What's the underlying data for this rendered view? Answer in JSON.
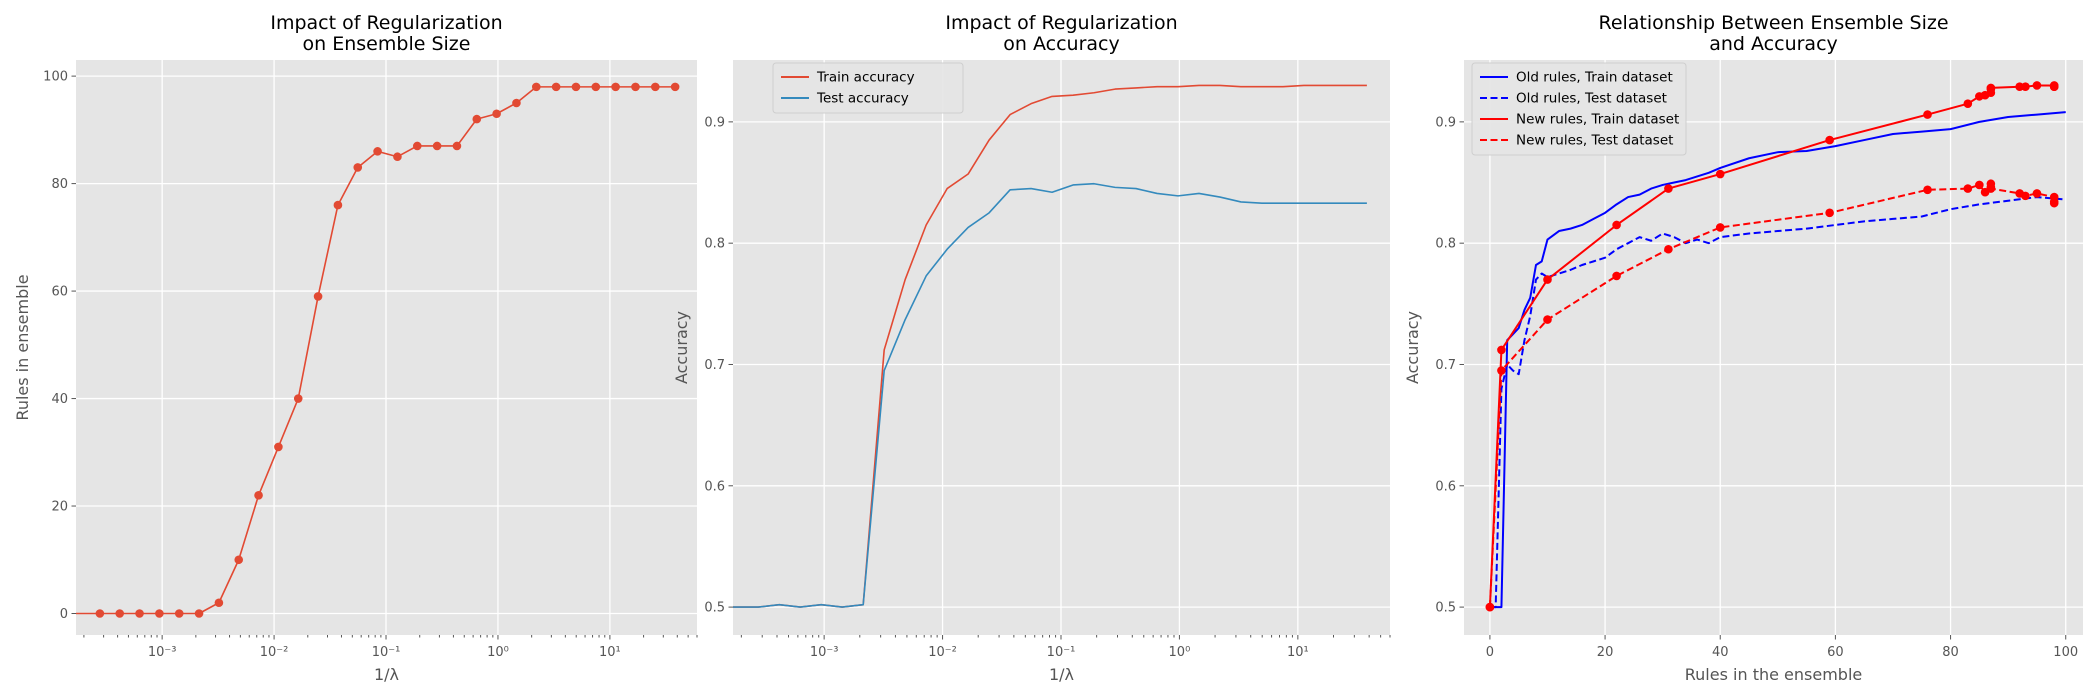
{
  "chart_data": [
    {
      "type": "line",
      "title": "Impact of Regularization\non Ensemble Size",
      "xlabel": "1/λ",
      "ylabel": "Rules in ensemble",
      "xscale": "log",
      "xlim": [
        0.00017,
        60
      ],
      "ylim": [
        -4,
        103
      ],
      "xticks": [
        0.001,
        0.01,
        0.1,
        1,
        10
      ],
      "xtick_labels": [
        "10⁻³",
        "10⁻²",
        "10⁻¹",
        "10⁰",
        "10¹"
      ],
      "yticks": [
        0,
        20,
        40,
        60,
        80,
        100
      ],
      "ytick_labels": [
        "0",
        "20",
        "40",
        "60",
        "80",
        "100"
      ],
      "grid": true,
      "series": [
        {
          "color": "#e24a33",
          "marker": "o",
          "x": [
            0.0001,
            0.0002778,
            0.0004178,
            0.0006283,
            0.0009449,
            0.001421,
            0.002137,
            0.003214,
            0.004833,
            0.007269,
            0.01093,
            0.01644,
            0.02472,
            0.03718,
            0.05591,
            0.08408,
            0.1265,
            0.1902,
            0.286,
            0.4301,
            0.6469,
            0.9728,
            1.463,
            2.2,
            3.309,
            4.976,
            7.484,
            11.25,
            16.93,
            25.45,
            38.28
          ],
          "values": [
            0,
            0,
            0,
            0,
            0,
            0,
            0,
            2,
            10,
            22,
            31,
            40,
            59,
            76,
            83,
            86,
            85,
            87,
            87,
            87,
            92,
            93,
            95,
            98,
            98,
            98,
            98,
            98,
            98,
            98,
            98
          ]
        }
      ]
    },
    {
      "type": "line",
      "title": "Impact of Regularization\non Accuracy",
      "xlabel": "1/λ",
      "ylabel": "Accuracy",
      "xscale": "log",
      "xlim": [
        0.00017,
        60
      ],
      "ylim": [
        0.477,
        0.951
      ],
      "xticks": [
        0.001,
        0.01,
        0.1,
        1,
        10
      ],
      "xtick_labels": [
        "10⁻³",
        "10⁻²",
        "10⁻¹",
        "10⁰",
        "10¹"
      ],
      "yticks": [
        0.5,
        0.6,
        0.7,
        0.8,
        0.9
      ],
      "ytick_labels": [
        "0.5",
        "0.6",
        "0.7",
        "0.8",
        "0.9"
      ],
      "grid": true,
      "legend": "top-left",
      "x": [
        0.0001,
        0.0002778,
        0.0004178,
        0.0006283,
        0.0009449,
        0.001421,
        0.002137,
        0.003214,
        0.004833,
        0.007269,
        0.01093,
        0.01644,
        0.02472,
        0.03718,
        0.05591,
        0.08408,
        0.1265,
        0.1902,
        0.286,
        0.4301,
        0.6469,
        0.9728,
        1.463,
        2.2,
        3.309,
        4.976,
        7.484,
        11.25,
        16.93,
        25.45,
        38.28
      ],
      "series": [
        {
          "name": "Train accuracy",
          "color": "#e24a33",
          "values": [
            0.5,
            0.5,
            0.502,
            0.5,
            0.502,
            0.5,
            0.502,
            0.712,
            0.77,
            0.815,
            0.845,
            0.857,
            0.885,
            0.906,
            0.915,
            0.921,
            0.922,
            0.924,
            0.927,
            0.928,
            0.929,
            0.929,
            0.93,
            0.93,
            0.929,
            0.929,
            0.929,
            0.93,
            0.93,
            0.93,
            0.93
          ]
        },
        {
          "name": "Test accuracy",
          "color": "#348abd",
          "values": [
            0.5,
            0.5,
            0.502,
            0.5,
            0.502,
            0.5,
            0.502,
            0.695,
            0.737,
            0.773,
            0.795,
            0.813,
            0.825,
            0.844,
            0.845,
            0.842,
            0.848,
            0.849,
            0.846,
            0.845,
            0.841,
            0.839,
            0.841,
            0.838,
            0.834,
            0.833,
            0.833,
            0.833,
            0.833,
            0.833,
            0.833
          ]
        }
      ]
    },
    {
      "type": "line",
      "title": "Relationship Between Ensemble Size\nand Accuracy",
      "xlabel": "Rules in the ensemble",
      "ylabel": "Accuracy",
      "xlim": [
        -4.5,
        103
      ],
      "ylim": [
        0.477,
        0.951
      ],
      "xticks": [
        0,
        20,
        40,
        60,
        80,
        100
      ],
      "xtick_labels": [
        "0",
        "20",
        "40",
        "60",
        "80",
        "100"
      ],
      "yticks": [
        0.5,
        0.6,
        0.7,
        0.8,
        0.9
      ],
      "ytick_labels": [
        "0.5",
        "0.6",
        "0.7",
        "0.8",
        "0.9"
      ],
      "grid": true,
      "legend": "top-left",
      "series": [
        {
          "name": "Old rules, Train dataset",
          "color": "#0000ff",
          "dash": "solid",
          "x": [
            0,
            1,
            2,
            3,
            4,
            5,
            6,
            7,
            8,
            9,
            10,
            12,
            14,
            16,
            18,
            20,
            22,
            24,
            26,
            28,
            30,
            32,
            34,
            36,
            38,
            40,
            45,
            50,
            55,
            60,
            65,
            70,
            75,
            80,
            85,
            90,
            95,
            100
          ],
          "values": [
            0.5,
            0.5,
            0.5,
            0.72,
            0.725,
            0.73,
            0.745,
            0.755,
            0.782,
            0.785,
            0.803,
            0.81,
            0.812,
            0.815,
            0.82,
            0.825,
            0.832,
            0.838,
            0.84,
            0.845,
            0.848,
            0.85,
            0.852,
            0.855,
            0.858,
            0.862,
            0.87,
            0.875,
            0.876,
            0.88,
            0.885,
            0.89,
            0.892,
            0.894,
            0.9,
            0.904,
            0.906,
            0.908
          ]
        },
        {
          "name": "Old rules, Test dataset",
          "color": "#0000ff",
          "dash": "dashed",
          "x": [
            0,
            1,
            2,
            3,
            4,
            5,
            6,
            7,
            8,
            9,
            10,
            12,
            14,
            16,
            18,
            20,
            22,
            24,
            26,
            28,
            30,
            32,
            34,
            36,
            38,
            40,
            45,
            50,
            55,
            60,
            65,
            70,
            75,
            80,
            85,
            90,
            95,
            100
          ],
          "values": [
            0.5,
            0.5,
            0.68,
            0.7,
            0.695,
            0.692,
            0.72,
            0.74,
            0.77,
            0.775,
            0.772,
            0.775,
            0.778,
            0.782,
            0.785,
            0.788,
            0.795,
            0.8,
            0.805,
            0.802,
            0.808,
            0.805,
            0.8,
            0.803,
            0.8,
            0.805,
            0.808,
            0.81,
            0.812,
            0.815,
            0.818,
            0.82,
            0.822,
            0.828,
            0.832,
            0.835,
            0.838,
            0.836
          ]
        },
        {
          "name": "New rules, Train dataset",
          "color": "#ff0000",
          "dash": "solid",
          "marker": "o",
          "x": [
            0,
            2,
            10,
            22,
            31,
            40,
            59,
            76,
            83,
            85,
            86,
            87,
            87,
            87,
            92,
            93,
            95,
            98,
            98,
            98
          ],
          "values": [
            0.5,
            0.712,
            0.77,
            0.815,
            0.845,
            0.857,
            0.885,
            0.906,
            0.915,
            0.921,
            0.922,
            0.924,
            0.927,
            0.928,
            0.929,
            0.929,
            0.93,
            0.93,
            0.929,
            0.929
          ]
        },
        {
          "name": "New rules, Test dataset",
          "color": "#ff0000",
          "dash": "dashed",
          "marker": "o",
          "x": [
            0,
            2,
            10,
            22,
            31,
            40,
            59,
            76,
            83,
            85,
            86,
            87,
            87,
            87,
            92,
            93,
            95,
            98,
            98,
            98
          ],
          "values": [
            0.5,
            0.695,
            0.737,
            0.773,
            0.795,
            0.813,
            0.825,
            0.844,
            0.845,
            0.848,
            0.842,
            0.849,
            0.846,
            0.845,
            0.841,
            0.839,
            0.841,
            0.838,
            0.834,
            0.833
          ]
        }
      ]
    }
  ]
}
